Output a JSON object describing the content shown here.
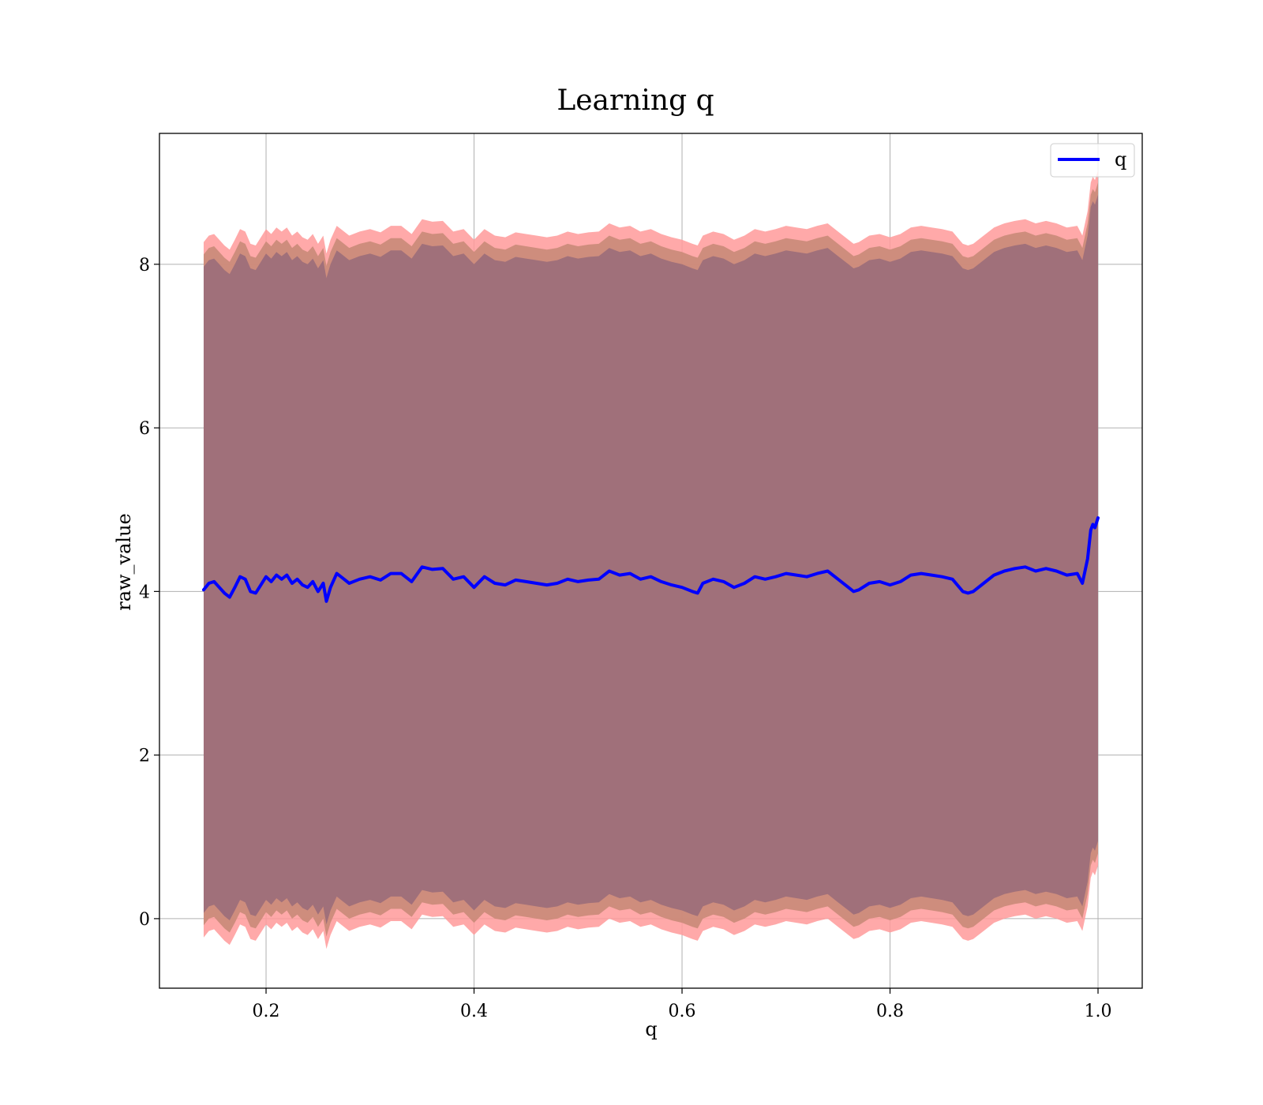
{
  "chart_data": {
    "type": "line",
    "title": "Learning q",
    "xlabel": "q",
    "ylabel": "raw_value",
    "xlim": [
      0.0975,
      1.0425
    ],
    "ylim": [
      -0.85,
      9.6
    ],
    "xticks": [
      0.2,
      0.4,
      0.6,
      0.8,
      1.0
    ],
    "xtick_labels": [
      "0.2",
      "0.4",
      "0.6",
      "0.8",
      "1.0"
    ],
    "yticks": [
      0,
      2,
      4,
      6,
      8
    ],
    "ytick_labels": [
      "0",
      "2",
      "4",
      "6",
      "8"
    ],
    "grid": true,
    "legend": {
      "position": "top-right",
      "entries": [
        "q"
      ]
    },
    "colors": {
      "line": "#0000ff",
      "band_outer": "#ff9a9a",
      "band_middle": "#c98a78",
      "band_inner": "#a0707a"
    },
    "bands": [
      {
        "offset": 4.25,
        "color": "#ff9a9a",
        "opacity": 0.85
      },
      {
        "offset": 4.1,
        "color": "#c98a78",
        "opacity": 0.9
      },
      {
        "offset": 3.95,
        "color": "#a0707a",
        "opacity": 1.0
      }
    ],
    "series": [
      {
        "name": "q",
        "x": [
          0.14,
          0.145,
          0.15,
          0.155,
          0.16,
          0.165,
          0.17,
          0.175,
          0.18,
          0.185,
          0.19,
          0.195,
          0.2,
          0.205,
          0.21,
          0.215,
          0.22,
          0.225,
          0.23,
          0.235,
          0.24,
          0.245,
          0.25,
          0.255,
          0.258,
          0.262,
          0.268,
          0.272,
          0.28,
          0.29,
          0.3,
          0.31,
          0.32,
          0.33,
          0.34,
          0.35,
          0.36,
          0.37,
          0.38,
          0.39,
          0.4,
          0.41,
          0.42,
          0.43,
          0.44,
          0.45,
          0.46,
          0.47,
          0.48,
          0.49,
          0.5,
          0.51,
          0.52,
          0.53,
          0.54,
          0.55,
          0.56,
          0.57,
          0.58,
          0.59,
          0.6,
          0.61,
          0.615,
          0.62,
          0.63,
          0.64,
          0.65,
          0.66,
          0.67,
          0.68,
          0.69,
          0.7,
          0.71,
          0.72,
          0.73,
          0.74,
          0.75,
          0.76,
          0.765,
          0.77,
          0.78,
          0.79,
          0.8,
          0.81,
          0.82,
          0.83,
          0.84,
          0.85,
          0.86,
          0.87,
          0.875,
          0.88,
          0.89,
          0.9,
          0.91,
          0.92,
          0.93,
          0.94,
          0.95,
          0.96,
          0.97,
          0.98,
          0.985,
          0.99,
          0.993,
          0.995,
          0.997,
          1.0
        ],
        "values": [
          4.02,
          4.1,
          4.12,
          4.05,
          3.98,
          3.93,
          4.05,
          4.18,
          4.15,
          4.0,
          3.98,
          4.08,
          4.18,
          4.12,
          4.2,
          4.15,
          4.2,
          4.1,
          4.15,
          4.08,
          4.05,
          4.12,
          4.0,
          4.1,
          3.88,
          4.05,
          4.22,
          4.18,
          4.1,
          4.15,
          4.18,
          4.14,
          4.22,
          4.22,
          4.12,
          4.3,
          4.27,
          4.28,
          4.15,
          4.18,
          4.05,
          4.18,
          4.1,
          4.08,
          4.14,
          4.12,
          4.1,
          4.08,
          4.1,
          4.15,
          4.12,
          4.14,
          4.15,
          4.25,
          4.2,
          4.22,
          4.15,
          4.18,
          4.12,
          4.08,
          4.05,
          4.0,
          3.98,
          4.1,
          4.15,
          4.12,
          4.05,
          4.1,
          4.18,
          4.15,
          4.18,
          4.22,
          4.2,
          4.18,
          4.22,
          4.25,
          4.15,
          4.05,
          4.0,
          4.02,
          4.1,
          4.12,
          4.08,
          4.12,
          4.2,
          4.22,
          4.2,
          4.18,
          4.15,
          4.0,
          3.98,
          4.0,
          4.1,
          4.2,
          4.25,
          4.28,
          4.3,
          4.25,
          4.28,
          4.25,
          4.2,
          4.22,
          4.1,
          4.4,
          4.75,
          4.82,
          4.78,
          4.9
        ]
      }
    ]
  }
}
